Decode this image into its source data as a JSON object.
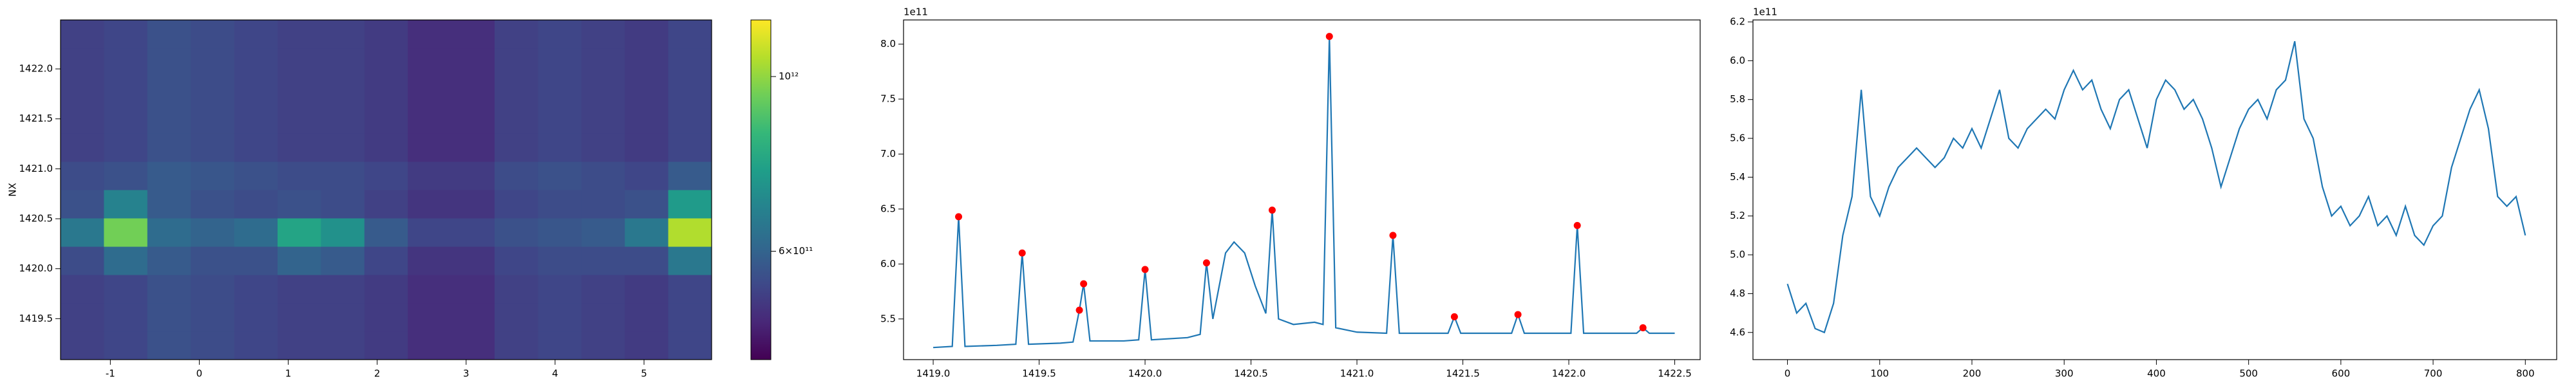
{
  "chart_data": [
    {
      "type": "heatmap",
      "ylabel": "NX",
      "colormap": "viridis",
      "xlim": [
        -1.56,
        5.76
      ],
      "ylim": [
        1419.09,
        1422.49
      ],
      "xticks": [
        -1,
        0,
        1,
        2,
        3,
        4,
        5
      ],
      "yticks": [
        1419.5,
        {
          "value": 1420,
          "label": "1420.0"
        },
        1420.5,
        {
          "value": 1421,
          "label": "1421.0"
        },
        1421.5,
        {
          "value": 1422,
          "label": "1422.0"
        }
      ],
      "xbins": [
        -1.56,
        -1.072,
        -0.584,
        -0.096,
        0.392,
        0.88,
        1.368,
        1.856,
        2.344,
        2.832,
        3.32,
        3.808,
        4.296,
        4.784,
        5.272,
        5.76
      ],
      "ybins": [
        1419.09,
        1419.373,
        1419.657,
        1419.94,
        1420.223,
        1420.507,
        1420.79,
        1421.073,
        1421.357,
        1421.64,
        1421.923,
        1422.207,
        1422.49
      ],
      "z": [
        [
          530000000000.0,
          540000000000.0,
          560000000000.0,
          550000000000.0,
          540000000000.0,
          530000000000.0,
          530000000000.0,
          520000000000.0,
          500000000000.0,
          500000000000.0,
          530000000000.0,
          540000000000.0,
          530000000000.0,
          520000000000.0,
          540000000000.0
        ],
        [
          530000000000.0,
          540000000000.0,
          560000000000.0,
          550000000000.0,
          540000000000.0,
          530000000000.0,
          530000000000.0,
          520000000000.0,
          500000000000.0,
          500000000000.0,
          530000000000.0,
          540000000000.0,
          530000000000.0,
          520000000000.0,
          540000000000.0
        ],
        [
          530000000000.0,
          540000000000.0,
          560000000000.0,
          550000000000.0,
          540000000000.0,
          530000000000.0,
          530000000000.0,
          520000000000.0,
          500000000000.0,
          500000000000.0,
          530000000000.0,
          540000000000.0,
          530000000000.0,
          520000000000.0,
          540000000000.0
        ],
        [
          550000000000.0,
          620000000000.0,
          580000000000.0,
          560000000000.0,
          560000000000.0,
          600000000000.0,
          580000000000.0,
          540000000000.0,
          510000000000.0,
          510000000000.0,
          540000000000.0,
          550000000000.0,
          550000000000.0,
          550000000000.0,
          650000000000.0
        ],
        [
          650000000000.0,
          950000000000.0,
          620000000000.0,
          600000000000.0,
          620000000000.0,
          780000000000.0,
          720000000000.0,
          580000000000.0,
          540000000000.0,
          540000000000.0,
          560000000000.0,
          570000000000.0,
          580000000000.0,
          650000000000.0,
          1050000000000.0
        ],
        [
          560000000000.0,
          680000000000.0,
          580000000000.0,
          560000000000.0,
          550000000000.0,
          560000000000.0,
          550000000000.0,
          530000000000.0,
          510000000000.0,
          510000000000.0,
          540000000000.0,
          550000000000.0,
          550000000000.0,
          560000000000.0,
          750000000000.0
        ],
        [
          550000000000.0,
          560000000000.0,
          580000000000.0,
          570000000000.0,
          560000000000.0,
          550000000000.0,
          550000000000.0,
          540000000000.0,
          520000000000.0,
          520000000000.0,
          550000000000.0,
          560000000000.0,
          550000000000.0,
          540000000000.0,
          580000000000.0
        ],
        [
          530000000000.0,
          540000000000.0,
          560000000000.0,
          550000000000.0,
          540000000000.0,
          530000000000.0,
          530000000000.0,
          520000000000.0,
          500000000000.0,
          500000000000.0,
          530000000000.0,
          540000000000.0,
          530000000000.0,
          520000000000.0,
          540000000000.0
        ],
        [
          530000000000.0,
          540000000000.0,
          560000000000.0,
          550000000000.0,
          540000000000.0,
          530000000000.0,
          530000000000.0,
          520000000000.0,
          500000000000.0,
          500000000000.0,
          530000000000.0,
          540000000000.0,
          530000000000.0,
          520000000000.0,
          540000000000.0
        ],
        [
          530000000000.0,
          540000000000.0,
          560000000000.0,
          550000000000.0,
          540000000000.0,
          530000000000.0,
          530000000000.0,
          520000000000.0,
          500000000000.0,
          500000000000.0,
          530000000000.0,
          540000000000.0,
          530000000000.0,
          520000000000.0,
          540000000000.0
        ],
        [
          530000000000.0,
          540000000000.0,
          560000000000.0,
          550000000000.0,
          540000000000.0,
          530000000000.0,
          530000000000.0,
          520000000000.0,
          500000000000.0,
          500000000000.0,
          530000000000.0,
          540000000000.0,
          530000000000.0,
          520000000000.0,
          540000000000.0
        ],
        [
          530000000000.0,
          540000000000.0,
          560000000000.0,
          550000000000.0,
          540000000000.0,
          530000000000.0,
          530000000000.0,
          520000000000.0,
          500000000000.0,
          500000000000.0,
          530000000000.0,
          540000000000.0,
          530000000000.0,
          520000000000.0,
          540000000000.0
        ]
      ],
      "colorbar": {
        "log": true,
        "clim": [
          437000000000.0,
          1180000000000.0
        ],
        "ticks": [
          {
            "value": 1000000000000.0,
            "label": "10¹²"
          },
          {
            "value": 600000000000.0,
            "label": "6×10¹¹"
          }
        ]
      }
    },
    {
      "type": "line",
      "y_offset_label": "1e11",
      "xlim": [
        1418.86,
        1422.62
      ],
      "ylim": [
        5.13,
        8.22
      ],
      "xticks": [
        {
          "value": 1419,
          "label": "1419.0"
        },
        1419.5,
        {
          "value": 1420,
          "label": "1420.0"
        },
        1420.5,
        {
          "value": 1421,
          "label": "1421.0"
        },
        1421.5,
        {
          "value": 1422,
          "label": "1422.0"
        },
        1422.5
      ],
      "yticks": [
        5.5,
        {
          "value": 6,
          "label": "6.0"
        },
        6.5,
        {
          "value": 7,
          "label": "7.0"
        },
        7.5,
        {
          "value": 8,
          "label": "8.0"
        }
      ],
      "series": [
        {
          "type": "line",
          "color": "#1f77b4",
          "x": [
            1419.0,
            1419.09,
            1419.12,
            1419.15,
            1419.3,
            1419.39,
            1419.42,
            1419.45,
            1419.6,
            1419.66,
            1419.69,
            1419.71,
            1419.74,
            1419.9,
            1419.97,
            1420.0,
            1420.03,
            1420.2,
            1420.26,
            1420.29,
            1420.32,
            1420.38,
            1420.42,
            1420.47,
            1420.52,
            1420.57,
            1420.6,
            1420.63,
            1420.7,
            1420.8,
            1420.84,
            1420.87,
            1420.9,
            1421.0,
            1421.14,
            1421.17,
            1421.2,
            1421.43,
            1421.46,
            1421.49,
            1421.73,
            1421.76,
            1421.79,
            1422.01,
            1422.04,
            1422.07,
            1422.32,
            1422.35,
            1422.38,
            1422.5
          ],
          "values": [
            5.24,
            5.25,
            6.43,
            5.25,
            5.26,
            5.27,
            6.1,
            5.27,
            5.28,
            5.29,
            5.58,
            5.82,
            5.3,
            5.3,
            5.31,
            5.95,
            5.31,
            5.33,
            5.36,
            6.01,
            5.5,
            6.1,
            6.2,
            6.1,
            5.8,
            5.55,
            6.49,
            5.5,
            5.45,
            5.47,
            5.45,
            8.07,
            5.42,
            5.38,
            5.37,
            6.26,
            5.37,
            5.37,
            5.52,
            5.37,
            5.37,
            5.54,
            5.37,
            5.37,
            6.35,
            5.37,
            5.37,
            5.42,
            5.37,
            5.37
          ]
        },
        {
          "type": "scatter",
          "color": "#ff0000",
          "x": [
            1419.12,
            1419.42,
            1419.69,
            1419.71,
            1420.0,
            1420.29,
            1420.6,
            1420.87,
            1421.17,
            1421.46,
            1421.76,
            1422.04,
            1422.35
          ],
          "values": [
            6.43,
            6.1,
            5.58,
            5.82,
            5.95,
            6.01,
            6.49,
            8.07,
            6.26,
            5.52,
            5.54,
            6.35,
            5.42
          ]
        }
      ]
    },
    {
      "type": "line",
      "y_offset_label": "1e11",
      "xlim": [
        -37.4,
        834
      ],
      "ylim": [
        4.46,
        6.21
      ],
      "xticks": [
        0,
        100,
        200,
        300,
        400,
        500,
        600,
        700,
        800
      ],
      "yticks": [
        4.6,
        4.8,
        {
          "value": 5,
          "label": "5.0"
        },
        5.2,
        5.4,
        5.6,
        5.8,
        {
          "value": 6,
          "label": "6.0"
        },
        6.2
      ],
      "series": [
        {
          "type": "line",
          "color": "#1f77b4",
          "x": [
            0,
            10,
            20,
            30,
            40,
            50,
            60,
            70,
            80,
            90,
            100,
            110,
            120,
            130,
            140,
            150,
            160,
            170,
            180,
            190,
            200,
            210,
            220,
            230,
            240,
            250,
            260,
            270,
            280,
            290,
            300,
            310,
            320,
            330,
            340,
            350,
            360,
            370,
            380,
            390,
            400,
            410,
            420,
            430,
            440,
            450,
            460,
            470,
            480,
            490,
            500,
            510,
            520,
            530,
            540,
            550,
            560,
            570,
            580,
            590,
            600,
            610,
            620,
            630,
            640,
            650,
            660,
            670,
            680,
            690,
            700,
            710,
            720,
            730,
            740,
            750,
            760,
            770,
            780,
            790,
            800
          ],
          "values": [
            4.85,
            4.7,
            4.75,
            4.62,
            4.6,
            4.75,
            5.1,
            5.3,
            5.85,
            5.3,
            5.2,
            5.35,
            5.45,
            5.5,
            5.55,
            5.5,
            5.45,
            5.5,
            5.6,
            5.55,
            5.65,
            5.55,
            5.7,
            5.85,
            5.6,
            5.55,
            5.65,
            5.7,
            5.75,
            5.7,
            5.85,
            5.95,
            5.85,
            5.9,
            5.75,
            5.65,
            5.8,
            5.85,
            5.7,
            5.55,
            5.8,
            5.9,
            5.85,
            5.75,
            5.8,
            5.7,
            5.55,
            5.35,
            5.5,
            5.65,
            5.75,
            5.8,
            5.7,
            5.85,
            5.9,
            6.1,
            5.7,
            5.6,
            5.35,
            5.2,
            5.25,
            5.15,
            5.2,
            5.3,
            5.15,
            5.2,
            5.1,
            5.25,
            5.1,
            5.05,
            5.15,
            5.2,
            5.45,
            5.6,
            5.75,
            5.85,
            5.65,
            5.3,
            5.25,
            5.3,
            5.1
          ]
        }
      ]
    }
  ]
}
